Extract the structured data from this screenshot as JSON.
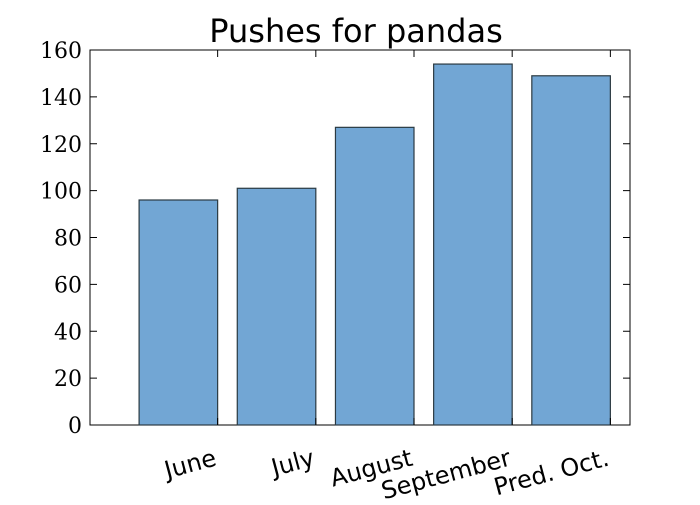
{
  "chart_data": {
    "type": "bar",
    "title": "Pushes for pandas",
    "categories": [
      "June",
      "July",
      "August",
      "September",
      "Pred. Oct."
    ],
    "values": [
      96,
      101,
      127,
      154,
      149
    ],
    "xlabel": "",
    "ylabel": "",
    "ylim": [
      0,
      160
    ],
    "yticks": [
      0,
      20,
      40,
      60,
      80,
      100,
      120,
      140,
      160
    ],
    "grid": false,
    "legend": "none",
    "bar_color": "#72a6d4",
    "edge_color": "#2b3a42"
  }
}
